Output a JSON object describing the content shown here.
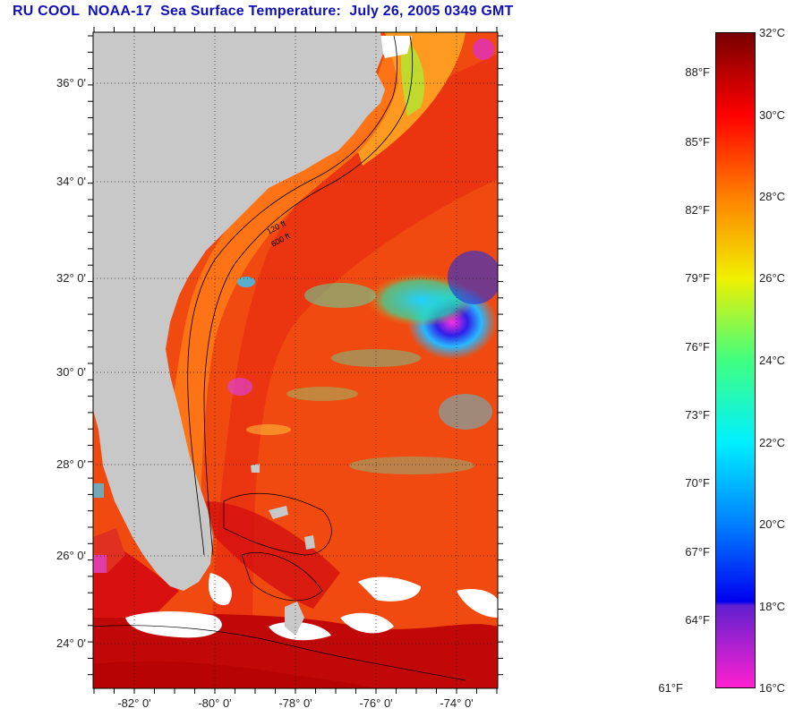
{
  "title": "RU COOL  NOAA-17  Sea Surface Temperature:  July 26, 2005 0349 GMT",
  "map": {
    "latitude_labels": [
      "36° 0'",
      "34° 0'",
      "32° 0'",
      "30° 0'",
      "28° 0'",
      "26° 0'",
      "24° 0'"
    ],
    "longitude_labels": [
      "-82° 0'",
      "-80° 0'",
      "-78° 0'",
      "-76° 0'",
      "-74° 0'"
    ],
    "contour_labels": [
      "120 ft",
      "600 ft"
    ],
    "colors": {
      "land": "#c8c8c8",
      "cloud": "#ffffff",
      "warm_water": "#f04a10",
      "hot_water": "#c80000",
      "cool_water": "#28b0ff",
      "cold_water": "#2020e0"
    }
  },
  "colorbar": {
    "celsius_labels": [
      "32°C",
      "30°C",
      "28°C",
      "26°C",
      "24°C",
      "22°C",
      "20°C",
      "18°C",
      "16°C"
    ],
    "fahrenheit_labels": [
      "88°F",
      "85°F",
      "82°F",
      "79°F",
      "76°F",
      "73°F",
      "70°F",
      "67°F",
      "64°F",
      "61°F"
    ],
    "stops": [
      {
        "value_c": 32,
        "color": "#780000"
      },
      {
        "value_c": 30,
        "color": "#ff0000"
      },
      {
        "value_c": 28,
        "color": "#ff8000"
      },
      {
        "value_c": 26,
        "color": "#f0f000"
      },
      {
        "value_c": 24,
        "color": "#40ff80"
      },
      {
        "value_c": 22,
        "color": "#00f0ff"
      },
      {
        "value_c": 20,
        "color": "#0080ff"
      },
      {
        "value_c": 18.1,
        "color": "#0000f0"
      },
      {
        "value_c": 18,
        "color": "#6020d0"
      },
      {
        "value_c": 16,
        "color": "#ff20d0"
      }
    ]
  }
}
